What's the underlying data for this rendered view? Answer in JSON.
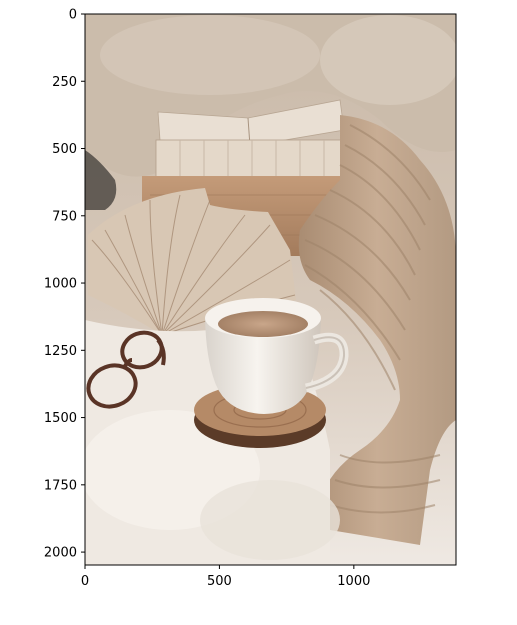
{
  "figure": {
    "kind": "image-plot",
    "photo_subject": "cozy still life",
    "xlim": [
      0,
      1380
    ],
    "ylim": [
      2048,
      0
    ],
    "x_ticks": [
      {
        "value": 0,
        "label": "0"
      },
      {
        "value": 500,
        "label": "500"
      },
      {
        "value": 1000,
        "label": "1000"
      }
    ],
    "y_ticks": [
      {
        "value": 0,
        "label": "0"
      },
      {
        "value": 250,
        "label": "250"
      },
      {
        "value": 500,
        "label": "500"
      },
      {
        "value": 750,
        "label": "750"
      },
      {
        "value": 1000,
        "label": "1000"
      },
      {
        "value": 1250,
        "label": "1250"
      },
      {
        "value": 1500,
        "label": "1500"
      },
      {
        "value": 1750,
        "label": "1750"
      },
      {
        "value": 2000,
        "label": "2000"
      }
    ],
    "colors": {
      "background": "#e6dcd2",
      "pillow": "#cdbfb0",
      "books": "#e8ddd0",
      "wood_box": "#b78e6c",
      "blanket": "#c1a58b",
      "cup": "#f2efea",
      "coffee": "#b48f72",
      "coaster": "#8a6246",
      "rug": "#f0ebe6",
      "glasses": "#5a3426"
    }
  }
}
